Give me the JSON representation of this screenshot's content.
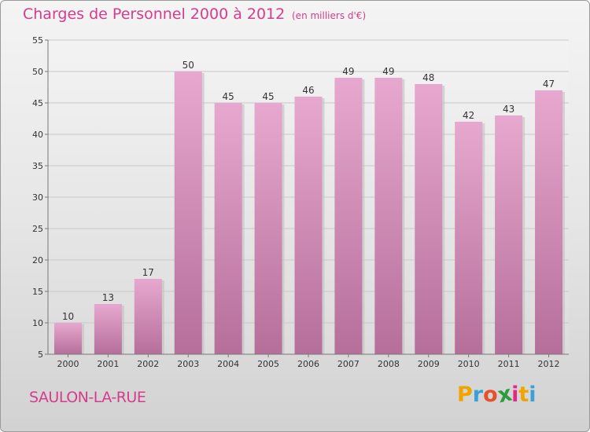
{
  "header": {
    "title": "Charges de Personnel 2000 à 2012",
    "unit": "(en milliers d'€)"
  },
  "footer": {
    "commune": "SAULON-LA-RUE",
    "logo_letters": [
      "P",
      "r",
      "o",
      "x",
      "i",
      "t",
      "i"
    ],
    "logo_colors": [
      "#f0a400",
      "#3aa1d8",
      "#e8502a",
      "#2e9c3c",
      "#e02a8a",
      "#f0a400",
      "#3aa1d8"
    ]
  },
  "chart_data": {
    "type": "bar",
    "categories": [
      "2000",
      "2001",
      "2002",
      "2003",
      "2004",
      "2005",
      "2006",
      "2007",
      "2008",
      "2009",
      "2010",
      "2011",
      "2012"
    ],
    "values": [
      10,
      13,
      17,
      50,
      45,
      45,
      46,
      49,
      49,
      48,
      42,
      43,
      47
    ],
    "title": "Charges de Personnel 2000 à 2012",
    "xlabel": "",
    "ylabel": "",
    "ylim": [
      5,
      55
    ],
    "yticks": [
      5,
      10,
      15,
      20,
      25,
      30,
      35,
      40,
      45,
      50,
      55
    ],
    "grid": true,
    "bar_color": "#d88ab8"
  }
}
